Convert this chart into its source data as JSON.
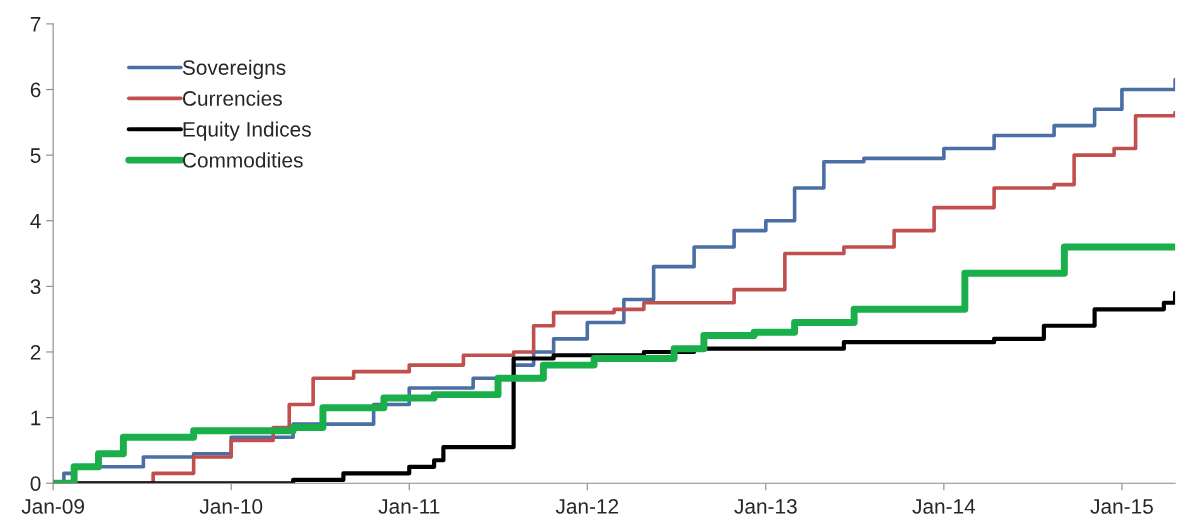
{
  "chart_data": {
    "type": "step",
    "legend": "top left",
    "grid": false,
    "line_style": "solid",
    "marker": "none",
    "xlim": [
      "2009-01-01",
      "2015-04-20"
    ],
    "xticks": [
      {
        "value": "2009-01-01",
        "label": "Jan-09"
      },
      {
        "value": "2010-01-01",
        "label": "Jan-10"
      },
      {
        "value": "2011-01-01",
        "label": "Jan-11"
      },
      {
        "value": "2012-01-01",
        "label": "Jan-12"
      },
      {
        "value": "2013-01-01",
        "label": "Jan-13"
      },
      {
        "value": "2014-01-01",
        "label": "Jan-14"
      },
      {
        "value": "2015-01-01",
        "label": "Jan-15"
      }
    ],
    "ylim": [
      0,
      7
    ],
    "yticks": [
      0,
      1,
      2,
      3,
      4,
      5,
      6,
      7
    ],
    "series": [
      {
        "name": "Sovereigns",
        "color": "#4a6fa5",
        "x": [
          "2009-01-01",
          "2009-01-23",
          "2009-02-13",
          "2009-07-05",
          "2009-10-16",
          "2010-01-01",
          "2010-05-08",
          "2010-10-20",
          "2011-01-01",
          "2011-05-12",
          "2011-08-03",
          "2011-09-13",
          "2011-10-24",
          "2012-01-01",
          "2012-03-16",
          "2012-05-16",
          "2012-08-07",
          "2012-10-28",
          "2013-01-01",
          "2013-03-01",
          "2013-04-30",
          "2013-07-21",
          "2014-01-01",
          "2014-04-14",
          "2014-08-15",
          "2014-11-06",
          "2015-01-01",
          "2015-04-20"
        ],
        "values": [
          0,
          0.15,
          0.25,
          0.4,
          0.45,
          0.7,
          0.9,
          1.2,
          1.45,
          1.6,
          1.8,
          2.0,
          2.2,
          2.45,
          2.8,
          3.3,
          3.6,
          3.85,
          4.0,
          4.5,
          4.9,
          4.95,
          5.1,
          5.3,
          5.45,
          5.7,
          6.0,
          6.15
        ]
      },
      {
        "name": "Currencies",
        "color": "#c0504d",
        "x": [
          "2009-01-01",
          "2009-07-15",
          "2009-07-25",
          "2009-10-16",
          "2010-01-01",
          "2010-03-28",
          "2010-04-30",
          "2010-06-18",
          "2010-09-09",
          "2011-01-01",
          "2011-04-22",
          "2011-08-03",
          "2011-09-13",
          "2011-10-24",
          "2012-02-25",
          "2012-04-26",
          "2012-10-28",
          "2013-02-09",
          "2013-06-10",
          "2013-09-21",
          "2013-12-12",
          "2014-04-14",
          "2014-08-15",
          "2014-09-25",
          "2014-12-16",
          "2015-01-29",
          "2015-04-20"
        ],
        "values": [
          0,
          0,
          0.15,
          0.4,
          0.65,
          0.85,
          1.2,
          1.6,
          1.7,
          1.8,
          1.95,
          2.0,
          2.4,
          2.6,
          2.65,
          2.75,
          2.95,
          3.5,
          3.6,
          3.85,
          4.2,
          4.5,
          4.55,
          5.0,
          5.1,
          5.6,
          5.65
        ]
      },
      {
        "name": "Equity Indices",
        "color": "#000000",
        "x": [
          "2009-01-01",
          "2009-09-06",
          "2010-05-08",
          "2010-08-19",
          "2011-01-01",
          "2011-02-21",
          "2011-03-12",
          "2011-07-25",
          "2011-08-03",
          "2011-10-24",
          "2012-04-26",
          "2012-08-07",
          "2013-06-10",
          "2014-04-14",
          "2014-07-25",
          "2014-11-06",
          "2015-03-28",
          "2015-04-20"
        ],
        "values": [
          0,
          0,
          0.05,
          0.15,
          0.25,
          0.35,
          0.55,
          0.55,
          1.9,
          1.95,
          2.0,
          2.05,
          2.15,
          2.2,
          2.4,
          2.65,
          2.75,
          2.9
        ]
      },
      {
        "name": "Commodities",
        "color": "#1aaf4b",
        "x": [
          "2009-01-01",
          "2009-02-13",
          "2009-04-04",
          "2009-05-25",
          "2009-10-16",
          "2010-05-08",
          "2010-07-08",
          "2010-11-10",
          "2011-02-21",
          "2011-07-02",
          "2011-10-03",
          "2012-01-15",
          "2012-06-27",
          "2012-08-27",
          "2012-12-08",
          "2013-03-01",
          "2013-07-01",
          "2014-02-13",
          "2014-09-05",
          "2015-04-20"
        ],
        "values": [
          0,
          0.25,
          0.45,
          0.7,
          0.8,
          0.85,
          1.15,
          1.3,
          1.35,
          1.6,
          1.8,
          1.9,
          2.05,
          2.25,
          2.3,
          2.45,
          2.65,
          3.2,
          3.6,
          3.6
        ]
      }
    ]
  }
}
